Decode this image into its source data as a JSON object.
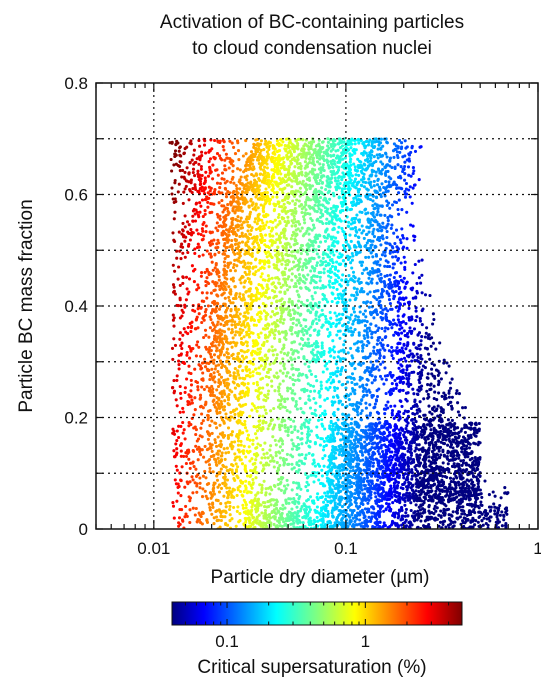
{
  "chart_data": {
    "type": "scatter",
    "title": [
      "Activation of BC-containing particles",
      "to cloud condensation nuclei"
    ],
    "xlabel": "Particle dry diameter (µm)",
    "ylabel": "Particle BC mass fraction",
    "xscale": "log",
    "xlim": [
      0.005,
      1
    ],
    "ylim": [
      0,
      0.8
    ],
    "x_ticks": [
      0.01,
      0.1,
      1
    ],
    "x_tick_labels": [
      "0.01",
      "0.1",
      "1"
    ],
    "y_ticks": [
      0,
      0.2,
      0.4,
      0.6,
      0.8
    ],
    "y_tick_labels": [
      "0",
      "0.2",
      "0.4",
      "0.6",
      "0.8"
    ],
    "grid": "dotted at x = 0.01, 0.1 and y = 0.1, 0.2, 0.3, 0.4, 0.5, 0.6, 0.7",
    "color_variable": "Critical supersaturation (%)",
    "colorbar": {
      "label": "Critical supersaturation (%)",
      "scale": "log",
      "range": [
        0.04,
        5
      ],
      "ticks": [
        0.1,
        1
      ],
      "tick_labels": [
        "0.1",
        "1"
      ],
      "colormap": "jet (blue = low, dark red = high)"
    },
    "series": [
      {
        "description_points": "particle population",
        "bc_fraction_max": 0.7,
        "diameter_range": [
          0.007,
          0.7
        ],
        "supersaturation_range": [
          0.04,
          5
        ]
      }
    ]
  },
  "colors": {
    "jet": [
      "#000080",
      "#0000ff",
      "#0080ff",
      "#00ffff",
      "#80ff80",
      "#ffff00",
      "#ff8000",
      "#ff0000",
      "#800000"
    ]
  }
}
